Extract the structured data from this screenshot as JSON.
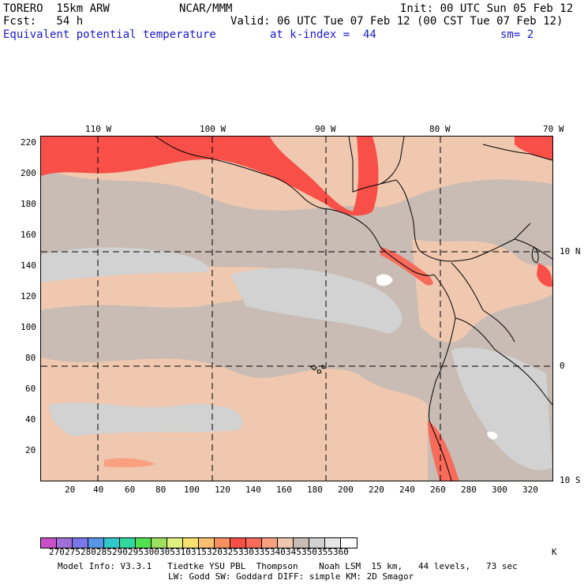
{
  "header": {
    "model": "TORERO  15km ARW",
    "center": "NCAR/MMM",
    "init": "Init: 00 UTC Sun 05 Feb 12",
    "fcst": "Fcst:   54 h",
    "valid": "Valid: 06 UTC Tue 07 Feb 12 (00 CST Tue 07 Feb 12)",
    "field": "Equivalent potential temperature",
    "level": "at k-index =  44",
    "smooth": "sm= 2"
  },
  "map": {
    "lon_labels": [
      "110 W",
      "100 W",
      "90 W",
      "80 W",
      "70 W"
    ],
    "lat_labels": [
      "10 N",
      "0",
      "10 S"
    ],
    "y_ticks": [
      "220",
      "200",
      "180",
      "160",
      "140",
      "120",
      "100",
      "80",
      "60",
      "40",
      "20"
    ],
    "x_ticks": [
      "20",
      "40",
      "60",
      "80",
      "100",
      "120",
      "140",
      "160",
      "180",
      "200",
      "220",
      "240",
      "260",
      "280",
      "300",
      "320"
    ]
  },
  "colorbar": {
    "labels": [
      "270",
      "275",
      "280",
      "285",
      "290",
      "295",
      "300",
      "305",
      "310",
      "315",
      "320",
      "325",
      "330",
      "335",
      "340",
      "345",
      "350",
      "355",
      "360"
    ],
    "unit": "K",
    "colors": [
      "#c850c8",
      "#a070d8",
      "#7878e8",
      "#5a96e8",
      "#30c8c8",
      "#30d8a0",
      "#50e050",
      "#a0e060",
      "#e0f080",
      "#f8e070",
      "#f8c070",
      "#f89060",
      "#f85048",
      "#f86a5a",
      "#f8a080",
      "#f0c8b0",
      "#c8bcb4",
      "#d2d2d2",
      "#e6e6e6",
      "#ffffff"
    ]
  },
  "footer": {
    "line1": "Model Info: V3.3.1   Tiedtke YSU PBL  Thompson    Noah LSM  15 km,   44 levels,   73 sec",
    "line2": "LW: Godd SW: Goddard DIFF: simple KM: 2D Smagor"
  }
}
